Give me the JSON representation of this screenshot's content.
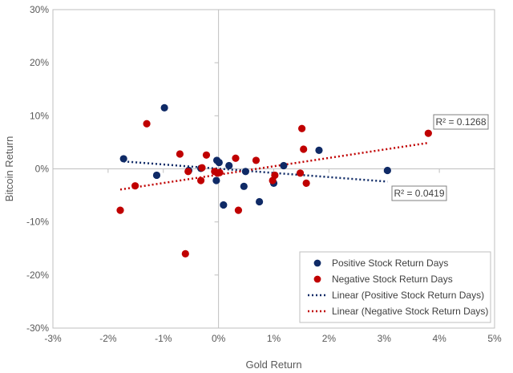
{
  "chart_data": {
    "type": "scatter",
    "title": "",
    "xlabel": "Gold Return",
    "ylabel": "Bitcoin Return",
    "xlim": [
      -0.03,
      0.05
    ],
    "ylim": [
      -0.3,
      0.3
    ],
    "x_ticks": [
      -0.03,
      -0.02,
      -0.01,
      0.0,
      0.01,
      0.02,
      0.03,
      0.04,
      0.05
    ],
    "y_ticks": [
      -0.3,
      -0.2,
      -0.1,
      0.0,
      0.1,
      0.2,
      0.3
    ],
    "x_tick_labels": [
      "-3%",
      "-2%",
      "-1%",
      "0%",
      "1%",
      "2%",
      "3%",
      "4%",
      "5%"
    ],
    "y_tick_labels": [
      "-30%",
      "-20%",
      "-10%",
      "0%",
      "10%",
      "20%",
      "30%"
    ],
    "grid": false,
    "legend_position": "bottom-right",
    "series": [
      {
        "name": "Positive Stock Return Days",
        "color": "#0f2a66",
        "points": [
          [
            -0.0172,
            0.019
          ],
          [
            -0.0112,
            -0.012
          ],
          [
            -0.0098,
            0.115
          ],
          [
            -0.0054,
            -0.003
          ],
          [
            -0.0032,
            0.001
          ],
          [
            -0.0004,
            -0.022
          ],
          [
            -0.0003,
            0.016
          ],
          [
            0.0001,
            0.012
          ],
          [
            0.0009,
            -0.068
          ],
          [
            0.0019,
            0.006
          ],
          [
            0.0046,
            -0.033
          ],
          [
            0.0049,
            -0.005
          ],
          [
            0.0074,
            -0.062
          ],
          [
            0.01,
            -0.027
          ],
          [
            0.0118,
            0.006
          ],
          [
            0.0182,
            0.035
          ],
          [
            0.0306,
            -0.003
          ]
        ]
      },
      {
        "name": "Negative Stock Return Days",
        "color": "#c00000",
        "points": [
          [
            -0.0178,
            -0.078
          ],
          [
            -0.0151,
            -0.032
          ],
          [
            -0.013,
            0.085
          ],
          [
            -0.007,
            0.028
          ],
          [
            -0.006,
            -0.16
          ],
          [
            -0.0055,
            -0.005
          ],
          [
            -0.0032,
            -0.022
          ],
          [
            -0.003,
            0.002
          ],
          [
            -0.0022,
            0.026
          ],
          [
            -0.0007,
            -0.005
          ],
          [
            -0.0002,
            -0.008
          ],
          [
            0.0002,
            -0.007
          ],
          [
            0.0031,
            0.02
          ],
          [
            0.0036,
            -0.078
          ],
          [
            0.0068,
            0.016
          ],
          [
            0.0098,
            -0.022
          ],
          [
            0.0102,
            -0.012
          ],
          [
            0.0148,
            -0.008
          ],
          [
            0.0151,
            0.076
          ],
          [
            0.0154,
            0.037
          ],
          [
            0.0159,
            -0.027
          ],
          [
            0.038,
            0.067
          ]
        ]
      }
    ],
    "trendlines": [
      {
        "name": "Linear (Positive Stock Return Days)",
        "color": "#0f2a66",
        "start": [
          -0.0172,
          0.014
        ],
        "end": [
          0.0306,
          -0.024
        ],
        "r2_label": "R² = 0.0419"
      },
      {
        "name": "Linear (Negative Stock Return Days)",
        "color": "#c00000",
        "start": [
          -0.0178,
          -0.039
        ],
        "end": [
          0.038,
          0.049
        ],
        "r2_label": "R² = 0.1268"
      }
    ]
  }
}
